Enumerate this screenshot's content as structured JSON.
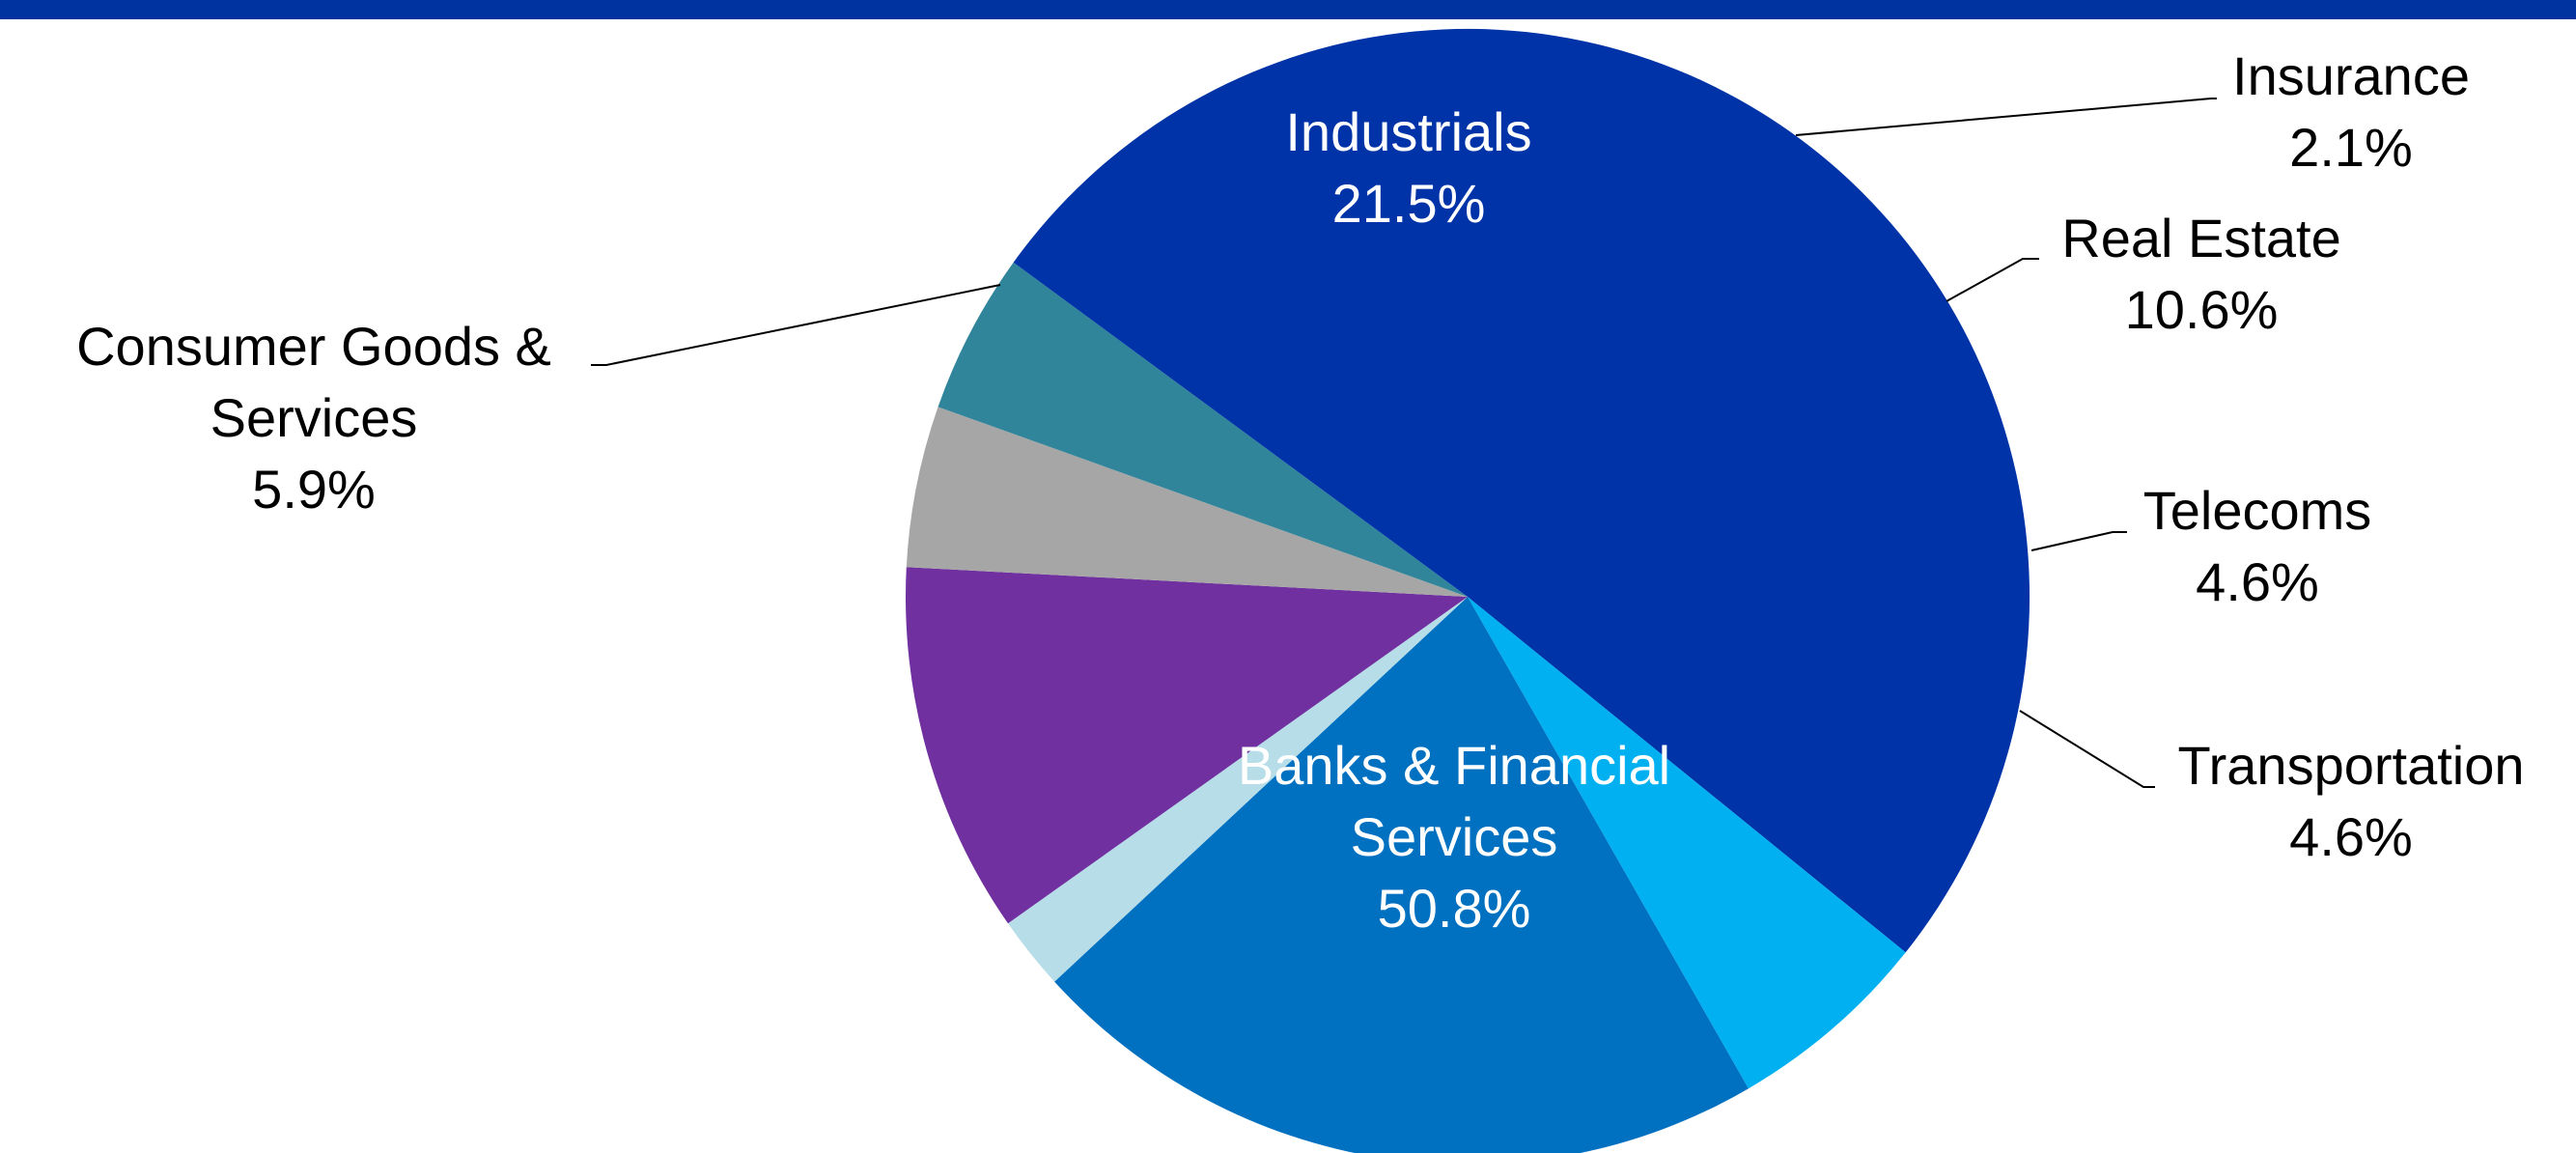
{
  "chart_data": {
    "type": "pie",
    "title": "",
    "slices": [
      {
        "name": "Industrials",
        "lines": [
          "Industrials"
        ],
        "value_label": "21.5%",
        "value": 21.5,
        "color": "#0070c0",
        "label_position": "inside",
        "label_color": "#ffffff"
      },
      {
        "name": "Insurance",
        "lines": [
          "Insurance"
        ],
        "value_label": "2.1%",
        "value": 2.1,
        "color": "#b7dde8",
        "label_position": "outside",
        "label_color": "#000000"
      },
      {
        "name": "Real Estate",
        "lines": [
          "Real Estate"
        ],
        "value_label": "10.6%",
        "value": 10.6,
        "color": "#7030a0",
        "label_position": "outside",
        "label_color": "#000000"
      },
      {
        "name": "Telecoms",
        "lines": [
          "Telecoms"
        ],
        "value_label": "4.6%",
        "value": 4.6,
        "color": "#a6a6a6",
        "label_position": "outside",
        "label_color": "#000000"
      },
      {
        "name": "Transportation",
        "lines": [
          "Transportation"
        ],
        "value_label": "4.6%",
        "value": 4.6,
        "color": "#31859b",
        "label_position": "outside",
        "label_color": "#000000"
      },
      {
        "name": "Banks & Financial Services",
        "lines": [
          "Banks & Financial",
          "Services"
        ],
        "value_label": "50.8%",
        "value": 50.8,
        "color": "#0033a8",
        "label_position": "inside",
        "label_color": "#ffffff"
      },
      {
        "name": "Consumer Goods & Services",
        "lines": [
          "Consumer Goods &",
          "Services"
        ],
        "value_label": "5.9%",
        "value": 5.9,
        "color": "#00b0f0",
        "label_position": "outside",
        "label_color": "#000000"
      }
    ],
    "legend": "none"
  },
  "colors": {
    "header_band": "#0033a0",
    "leader_line": "#000000"
  }
}
